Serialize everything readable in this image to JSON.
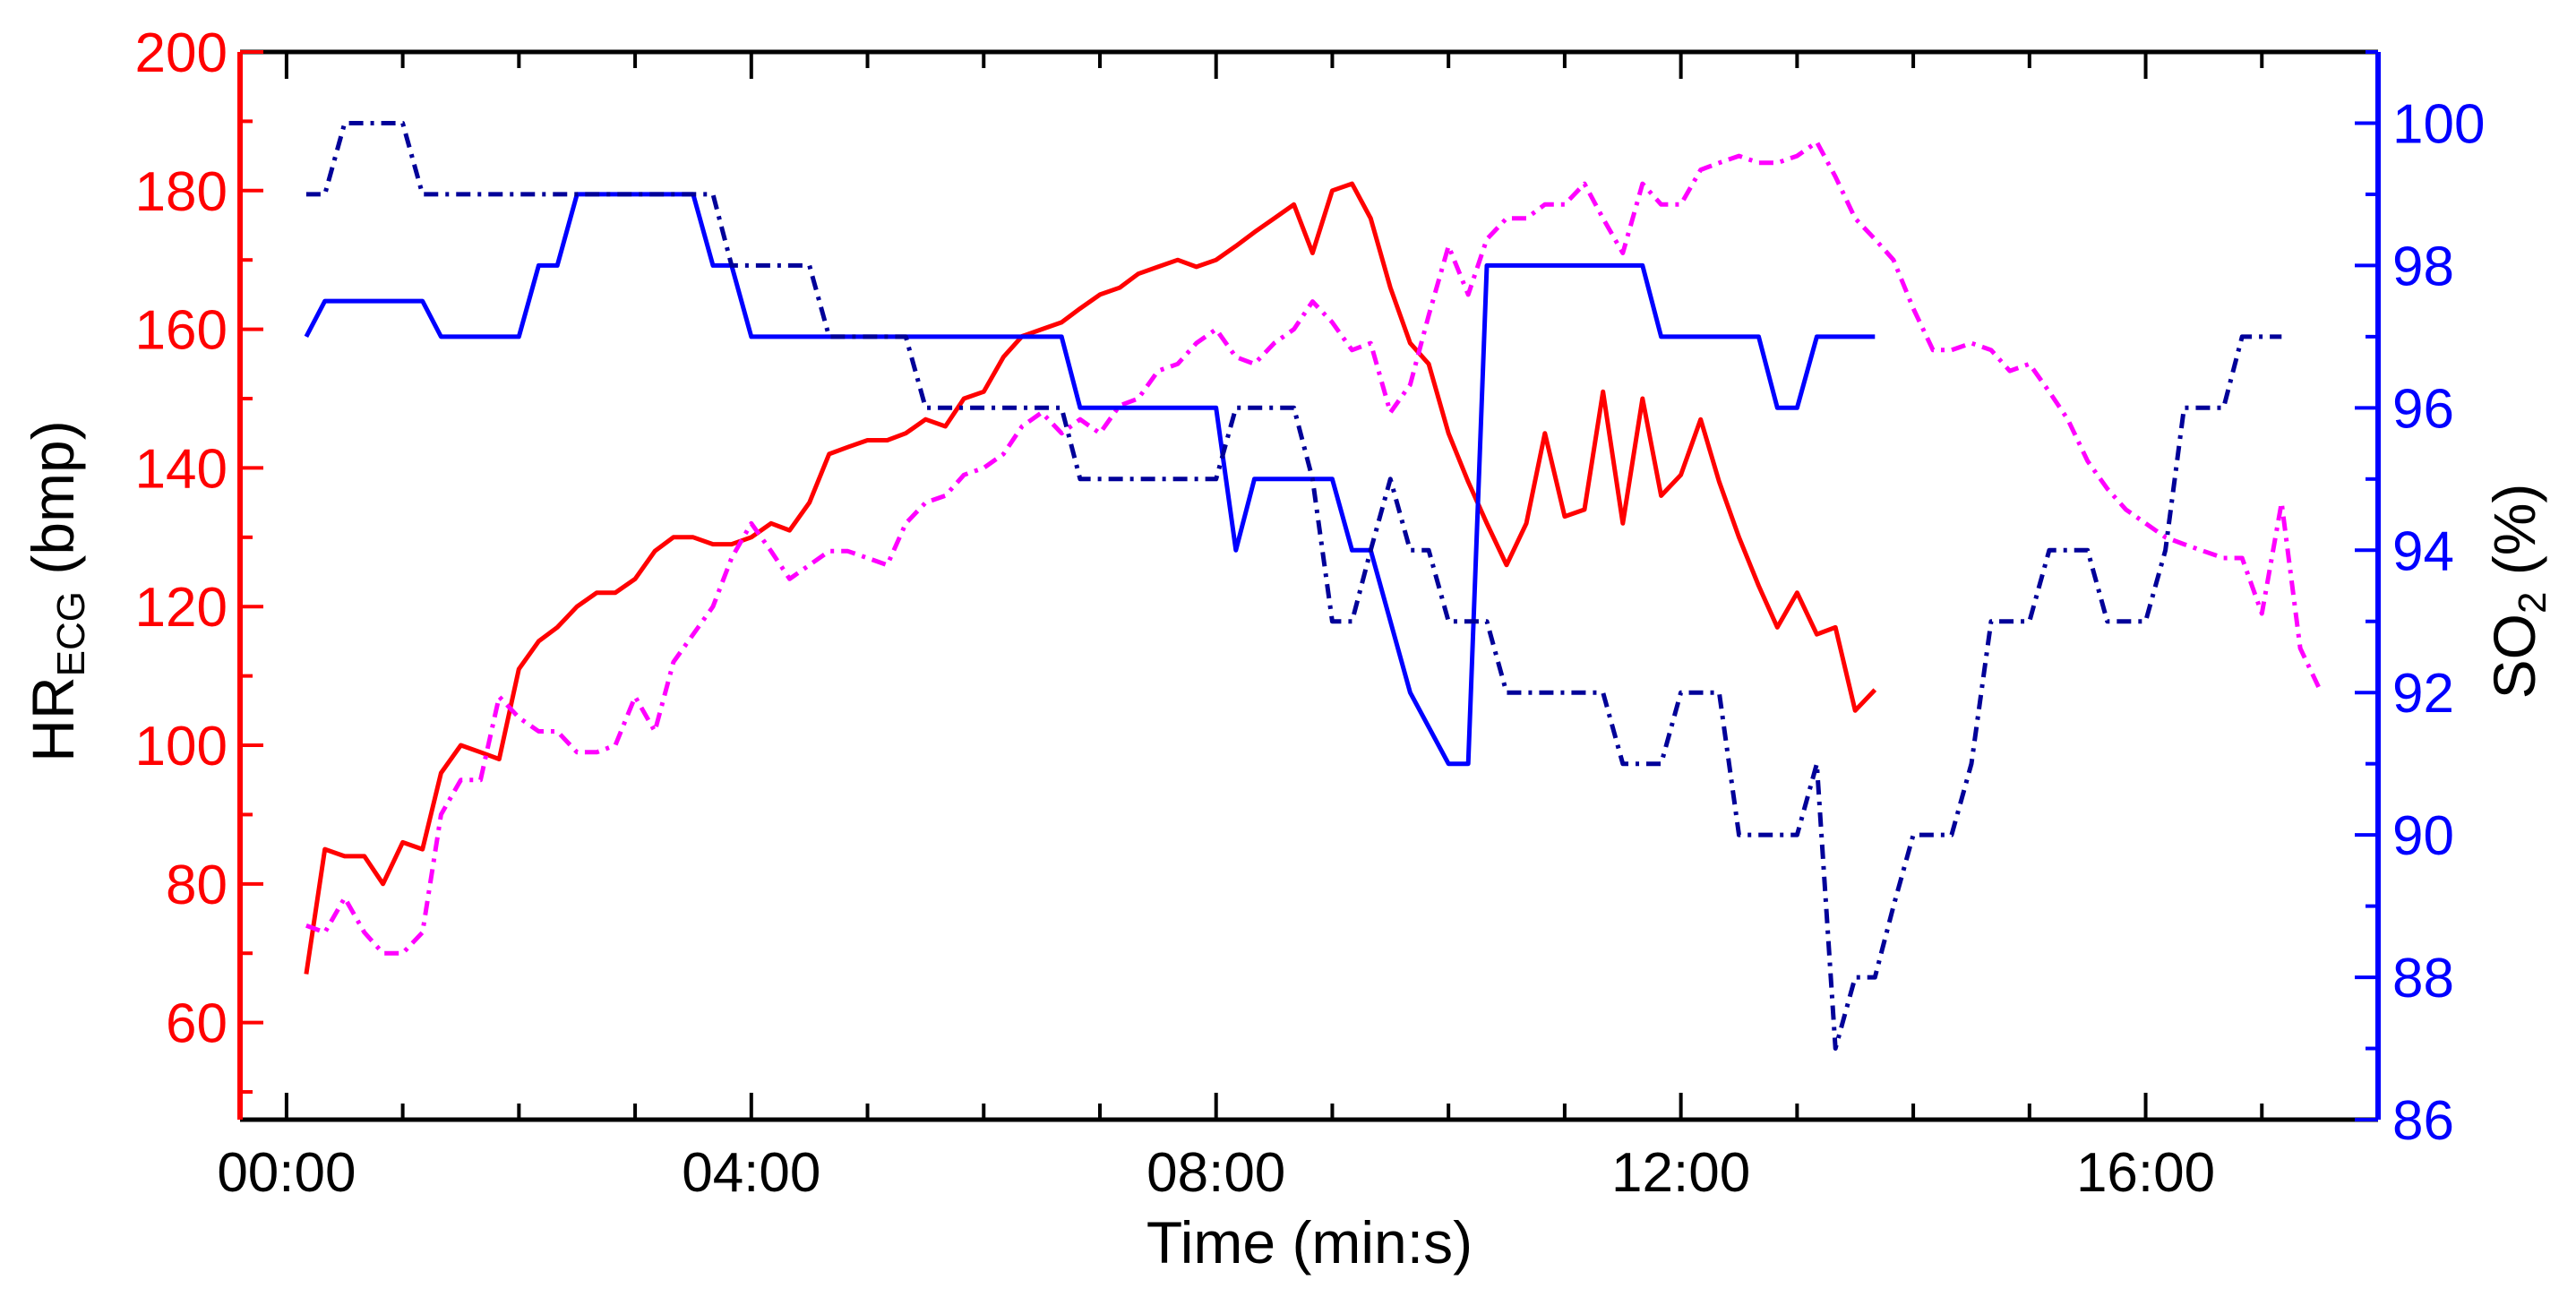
{
  "chart_data": {
    "type": "line",
    "xlabel": "Time (min:s)",
    "ylabel_left": {
      "main": "HR",
      "sub": "ECG",
      "unit": " (bmp)"
    },
    "ylabel_right": {
      "main": "SO",
      "sub": "2",
      "unit": " (%)"
    },
    "x_unit": "minutes",
    "xlim": [
      -0.4,
      18.0
    ],
    "ylim_left": [
      46,
      200
    ],
    "ylim_right": [
      86,
      101
    ],
    "x_ticks": [
      {
        "value": 0,
        "label": "00:00"
      },
      {
        "value": 4,
        "label": "04:00"
      },
      {
        "value": 8,
        "label": "08:00"
      },
      {
        "value": 12,
        "label": "12:00"
      },
      {
        "value": 16,
        "label": "16:00"
      }
    ],
    "y_ticks_left": [
      60,
      80,
      100,
      120,
      140,
      160,
      180,
      200
    ],
    "y_ticks_right": [
      86,
      88,
      90,
      92,
      94,
      96,
      98,
      100
    ],
    "colors": {
      "left_axis": "#ff0000",
      "right_axis": "#0000ff"
    },
    "series": [
      {
        "axis": "left",
        "color": "#ff0000",
        "dash": "solid",
        "points": [
          [
            0.17,
            67
          ],
          [
            0.33,
            85
          ],
          [
            0.5,
            84
          ],
          [
            0.67,
            84
          ],
          [
            0.83,
            80
          ],
          [
            1.0,
            86
          ],
          [
            1.17,
            85
          ],
          [
            1.33,
            96
          ],
          [
            1.5,
            100
          ],
          [
            1.67,
            99
          ],
          [
            1.83,
            98
          ],
          [
            2.0,
            111
          ],
          [
            2.17,
            115
          ],
          [
            2.33,
            117
          ],
          [
            2.5,
            120
          ],
          [
            2.67,
            122
          ],
          [
            2.83,
            122
          ],
          [
            3.0,
            124
          ],
          [
            3.17,
            128
          ],
          [
            3.33,
            130
          ],
          [
            3.5,
            130
          ],
          [
            3.67,
            129
          ],
          [
            3.83,
            129
          ],
          [
            4.0,
            130
          ],
          [
            4.17,
            132
          ],
          [
            4.33,
            131
          ],
          [
            4.5,
            135
          ],
          [
            4.67,
            142
          ],
          [
            4.83,
            143
          ],
          [
            5.0,
            144
          ],
          [
            5.17,
            144
          ],
          [
            5.33,
            145
          ],
          [
            5.5,
            147
          ],
          [
            5.67,
            146
          ],
          [
            5.83,
            150
          ],
          [
            6.0,
            151
          ],
          [
            6.17,
            156
          ],
          [
            6.33,
            159
          ],
          [
            6.5,
            160
          ],
          [
            6.67,
            161
          ],
          [
            6.83,
            163
          ],
          [
            7.0,
            165
          ],
          [
            7.17,
            166
          ],
          [
            7.33,
            168
          ],
          [
            7.5,
            169
          ],
          [
            7.67,
            170
          ],
          [
            7.83,
            169
          ],
          [
            8.0,
            170
          ],
          [
            8.17,
            172
          ],
          [
            8.33,
            174
          ],
          [
            8.5,
            176
          ],
          [
            8.67,
            178
          ],
          [
            8.83,
            171
          ],
          [
            9.0,
            180
          ],
          [
            9.17,
            181
          ],
          [
            9.33,
            176
          ],
          [
            9.5,
            166
          ],
          [
            9.67,
            158
          ],
          [
            9.83,
            155
          ],
          [
            10.0,
            145
          ],
          [
            10.17,
            138
          ],
          [
            10.33,
            132
          ],
          [
            10.5,
            126
          ],
          [
            10.67,
            132
          ],
          [
            10.83,
            145
          ],
          [
            11.0,
            133
          ],
          [
            11.17,
            134
          ],
          [
            11.33,
            151
          ],
          [
            11.5,
            132
          ],
          [
            11.67,
            150
          ],
          [
            11.83,
            136
          ],
          [
            12.0,
            139
          ],
          [
            12.17,
            147
          ],
          [
            12.33,
            138
          ],
          [
            12.5,
            130
          ],
          [
            12.67,
            123
          ],
          [
            12.83,
            117
          ],
          [
            13.0,
            122
          ],
          [
            13.17,
            116
          ],
          [
            13.33,
            117
          ],
          [
            13.5,
            105
          ],
          [
            13.67,
            108
          ]
        ]
      },
      {
        "axis": "left",
        "color": "#ff00ff",
        "dash": "dashdot",
        "points": [
          [
            0.17,
            74
          ],
          [
            0.33,
            73
          ],
          [
            0.5,
            78
          ],
          [
            0.67,
            73
          ],
          [
            0.83,
            70
          ],
          [
            1.0,
            70
          ],
          [
            1.17,
            73
          ],
          [
            1.33,
            90
          ],
          [
            1.5,
            95
          ],
          [
            1.67,
            95
          ],
          [
            1.83,
            107
          ],
          [
            2.0,
            104
          ],
          [
            2.17,
            102
          ],
          [
            2.33,
            102
          ],
          [
            2.5,
            99
          ],
          [
            2.67,
            99
          ],
          [
            2.83,
            100
          ],
          [
            3.0,
            107
          ],
          [
            3.17,
            102
          ],
          [
            3.33,
            112
          ],
          [
            3.5,
            116
          ],
          [
            3.67,
            120
          ],
          [
            3.83,
            127
          ],
          [
            4.0,
            132
          ],
          [
            4.17,
            128
          ],
          [
            4.33,
            124
          ],
          [
            4.5,
            126
          ],
          [
            4.67,
            128
          ],
          [
            4.83,
            128
          ],
          [
            5.0,
            127
          ],
          [
            5.17,
            126
          ],
          [
            5.33,
            132
          ],
          [
            5.5,
            135
          ],
          [
            5.67,
            136
          ],
          [
            5.83,
            139
          ],
          [
            6.0,
            140
          ],
          [
            6.17,
            142
          ],
          [
            6.33,
            146
          ],
          [
            6.5,
            148
          ],
          [
            6.67,
            145
          ],
          [
            6.83,
            147
          ],
          [
            7.0,
            145
          ],
          [
            7.17,
            149
          ],
          [
            7.33,
            150
          ],
          [
            7.5,
            154
          ],
          [
            7.67,
            155
          ],
          [
            7.83,
            158
          ],
          [
            8.0,
            160
          ],
          [
            8.17,
            156
          ],
          [
            8.33,
            155
          ],
          [
            8.5,
            158
          ],
          [
            8.67,
            160
          ],
          [
            8.83,
            164
          ],
          [
            9.0,
            161
          ],
          [
            9.17,
            157
          ],
          [
            9.33,
            158
          ],
          [
            9.5,
            148
          ],
          [
            9.67,
            152
          ],
          [
            9.83,
            162
          ],
          [
            10.0,
            172
          ],
          [
            10.17,
            165
          ],
          [
            10.33,
            173
          ],
          [
            10.5,
            176
          ],
          [
            10.67,
            176
          ],
          [
            10.83,
            178
          ],
          [
            11.0,
            178
          ],
          [
            11.17,
            181
          ],
          [
            11.33,
            176
          ],
          [
            11.5,
            171
          ],
          [
            11.67,
            181
          ],
          [
            11.83,
            178
          ],
          [
            12.0,
            178
          ],
          [
            12.17,
            183
          ],
          [
            12.33,
            184
          ],
          [
            12.5,
            185
          ],
          [
            12.67,
            184
          ],
          [
            12.83,
            184
          ],
          [
            13.0,
            185
          ],
          [
            13.17,
            187
          ],
          [
            13.33,
            182
          ],
          [
            13.5,
            176
          ],
          [
            13.67,
            173
          ],
          [
            13.83,
            170
          ],
          [
            14.0,
            163
          ],
          [
            14.17,
            157
          ],
          [
            14.33,
            157
          ],
          [
            14.5,
            158
          ],
          [
            14.67,
            157
          ],
          [
            14.83,
            154
          ],
          [
            15.0,
            155
          ],
          [
            15.17,
            151
          ],
          [
            15.33,
            147
          ],
          [
            15.5,
            141
          ],
          [
            15.67,
            137
          ],
          [
            15.83,
            134
          ],
          [
            16.0,
            132
          ],
          [
            16.17,
            130
          ],
          [
            16.33,
            129
          ],
          [
            16.5,
            128
          ],
          [
            16.67,
            127
          ],
          [
            16.83,
            127
          ],
          [
            17.0,
            119
          ],
          [
            17.17,
            135
          ],
          [
            17.33,
            114
          ],
          [
            17.5,
            108
          ]
        ]
      },
      {
        "axis": "right",
        "color": "#0000ff",
        "dash": "solid",
        "points": [
          [
            0.17,
            97
          ],
          [
            0.33,
            97.5
          ],
          [
            0.5,
            97.5
          ],
          [
            0.67,
            97.5
          ],
          [
            0.83,
            97.5
          ],
          [
            1.0,
            97.5
          ],
          [
            1.17,
            97.5
          ],
          [
            1.33,
            97
          ],
          [
            1.5,
            97
          ],
          [
            1.67,
            97
          ],
          [
            1.83,
            97
          ],
          [
            2.0,
            97
          ],
          [
            2.17,
            98
          ],
          [
            2.33,
            98
          ],
          [
            2.5,
            99
          ],
          [
            2.67,
            99
          ],
          [
            2.83,
            99
          ],
          [
            3.0,
            99
          ],
          [
            3.17,
            99
          ],
          [
            3.33,
            99
          ],
          [
            3.5,
            99
          ],
          [
            3.67,
            98
          ],
          [
            3.83,
            98
          ],
          [
            4.0,
            97
          ],
          [
            4.17,
            97
          ],
          [
            4.33,
            97
          ],
          [
            6.67,
            97
          ],
          [
            6.83,
            96
          ],
          [
            8.0,
            96
          ],
          [
            8.17,
            94
          ],
          [
            8.33,
            95
          ],
          [
            9.0,
            95
          ],
          [
            9.17,
            94
          ],
          [
            9.33,
            94
          ],
          [
            9.67,
            92
          ],
          [
            10.0,
            91
          ],
          [
            10.17,
            91
          ],
          [
            10.33,
            98
          ],
          [
            11.67,
            98
          ],
          [
            11.83,
            97
          ],
          [
            12.67,
            97
          ],
          [
            12.83,
            96
          ],
          [
            13.0,
            96
          ],
          [
            13.17,
            97
          ],
          [
            13.67,
            97
          ]
        ]
      },
      {
        "axis": "right",
        "color": "#000099",
        "dash": "dashdot",
        "points": [
          [
            0.17,
            99
          ],
          [
            0.33,
            99
          ],
          [
            0.5,
            100
          ],
          [
            0.67,
            100
          ],
          [
            0.83,
            100
          ],
          [
            1.0,
            100
          ],
          [
            1.17,
            99
          ],
          [
            3.67,
            99
          ],
          [
            3.83,
            98
          ],
          [
            4.5,
            98
          ],
          [
            4.67,
            97
          ],
          [
            5.33,
            97
          ],
          [
            5.5,
            96
          ],
          [
            6.67,
            96
          ],
          [
            6.83,
            95
          ],
          [
            8.0,
            95
          ],
          [
            8.17,
            96
          ],
          [
            8.67,
            96
          ],
          [
            8.83,
            95
          ],
          [
            9.0,
            93
          ],
          [
            9.17,
            93
          ],
          [
            9.33,
            94
          ],
          [
            9.5,
            95
          ],
          [
            9.67,
            94
          ],
          [
            9.83,
            94
          ],
          [
            10.0,
            93
          ],
          [
            10.33,
            93
          ],
          [
            10.5,
            92
          ],
          [
            11.0,
            92
          ],
          [
            11.17,
            92
          ],
          [
            11.33,
            92
          ],
          [
            11.5,
            91
          ],
          [
            11.83,
            91
          ],
          [
            12.0,
            92
          ],
          [
            12.33,
            92
          ],
          [
            12.5,
            90
          ],
          [
            13.0,
            90
          ],
          [
            13.17,
            91
          ],
          [
            13.33,
            87
          ],
          [
            13.5,
            88
          ],
          [
            13.67,
            88
          ],
          [
            13.83,
            89
          ],
          [
            14.0,
            90
          ],
          [
            14.33,
            90
          ],
          [
            14.5,
            91
          ],
          [
            14.67,
            93
          ],
          [
            14.83,
            93
          ],
          [
            15.0,
            93
          ],
          [
            15.17,
            94
          ],
          [
            15.33,
            94
          ],
          [
            15.5,
            94
          ],
          [
            15.67,
            93
          ],
          [
            15.83,
            93
          ],
          [
            16.0,
            93
          ],
          [
            16.17,
            94
          ],
          [
            16.33,
            96
          ],
          [
            16.5,
            96
          ],
          [
            16.67,
            96
          ],
          [
            16.83,
            97
          ],
          [
            17.0,
            97
          ],
          [
            17.17,
            97
          ]
        ]
      }
    ]
  }
}
